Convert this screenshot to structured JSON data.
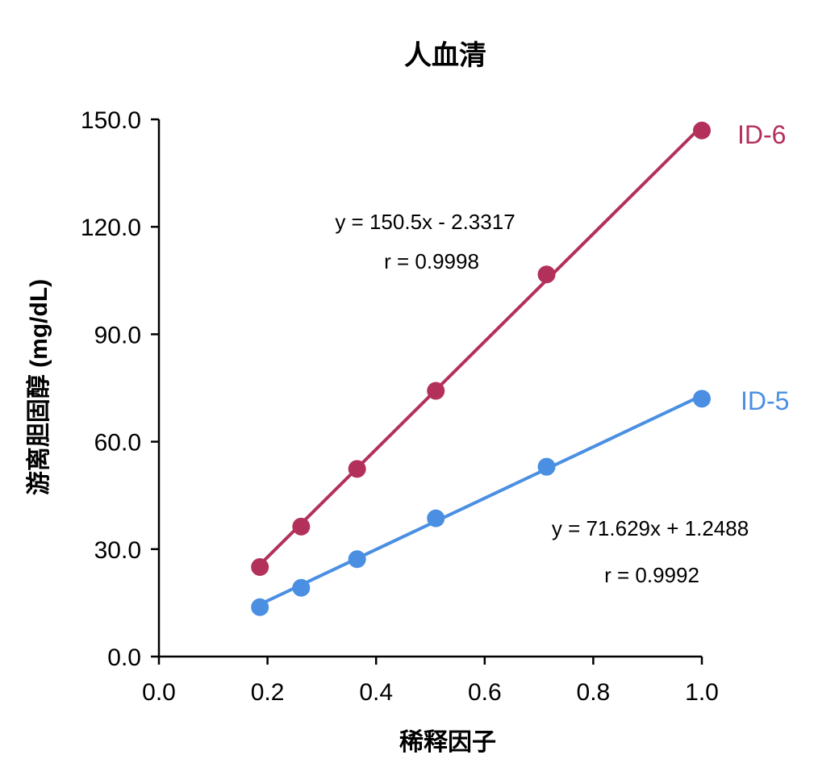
{
  "chart_data": {
    "type": "scatter",
    "title": "人血清",
    "xlabel": "稀释因子",
    "ylabel": "游离胆固醇 (mg/dL)",
    "xlim": [
      0,
      1
    ],
    "ylim": [
      0,
      150
    ],
    "x_ticks": [
      "0.0",
      "0.2",
      "0.4",
      "0.6",
      "0.8",
      "1.0"
    ],
    "y_ticks": [
      "0.0",
      "30.0",
      "60.0",
      "90.0",
      "120.0",
      "150.0"
    ],
    "grid": false,
    "legend": "none",
    "series": [
      {
        "name": "ID-6",
        "color": "#b3305a",
        "x": [
          0.186,
          0.262,
          0.365,
          0.51,
          0.714,
          1.0
        ],
        "y": [
          25.0,
          36.3,
          52.4,
          74.2,
          106.7,
          146.9
        ],
        "trendline": {
          "slope": 150.5,
          "intercept": -2.3317
        },
        "equation": "y = 150.5x - 2.3317",
        "r_text": "r = 0.9998"
      },
      {
        "name": "ID-5",
        "color": "#4a8fe2",
        "x": [
          0.186,
          0.262,
          0.365,
          0.51,
          0.714,
          1.0
        ],
        "y": [
          13.8,
          19.2,
          27.2,
          38.6,
          53.0,
          72.0
        ],
        "trendline": {
          "slope": 71.629,
          "intercept": 1.2488
        },
        "equation": "y = 71.629x + 1.2488",
        "r_text": "r = 0.9992"
      }
    ]
  }
}
